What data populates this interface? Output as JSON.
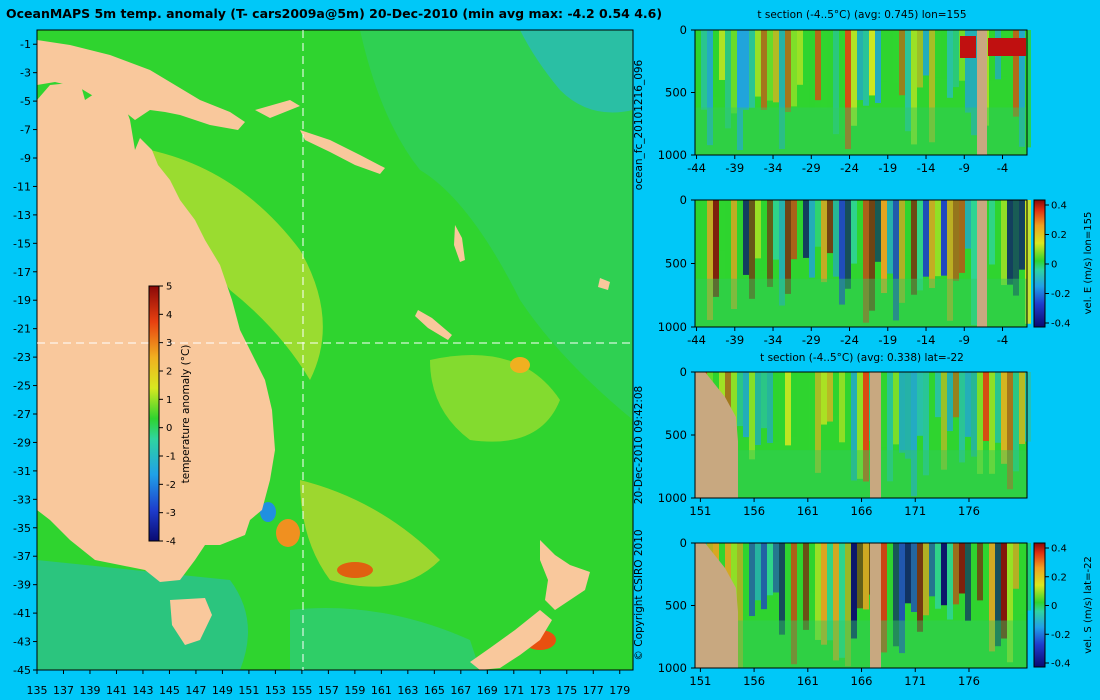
{
  "title": "OceanMAPS 5m temp. anomaly (T- cars2009a@5m) 20-Dec-2010 (min avg max: -4.2 0.54 4.6)",
  "side_text": {
    "run": "ocean_fc_20101216_096",
    "timestamp": "20-Dec-2010 09:42:08",
    "copyright": "© Copyright CSIRO 2010"
  },
  "colors": {
    "background": "#00c8f8",
    "land": "#f9c89c",
    "section_land": "#c8a880",
    "ocean_base": "#2fd42f",
    "crosshair": "#ffffff"
  },
  "chart_data": [
    {
      "id": "map",
      "type": "heatmap",
      "title": "OceanMAPS 5m temp. anomaly (T- cars2009a@5m) 20-Dec-2010 (min avg max: -4.2 0.54 4.6)",
      "x_ticks": [
        "135",
        "137",
        "139",
        "141",
        "143",
        "145",
        "147",
        "149",
        "151",
        "153",
        "155",
        "157",
        "159",
        "161",
        "163",
        "165",
        "167",
        "169",
        "171",
        "173",
        "175",
        "177",
        "179"
      ],
      "y_ticks": [
        "-1",
        "-3",
        "-5",
        "-7",
        "-9",
        "-11",
        "-13",
        "-15",
        "-17",
        "-19",
        "-21",
        "-23",
        "-25",
        "-27",
        "-29",
        "-31",
        "-33",
        "-35",
        "-37",
        "-39",
        "-41",
        "-43",
        "-45"
      ],
      "xlim": [
        135,
        180
      ],
      "ylim": [
        -45,
        0
      ],
      "crosshair": {
        "lon": 155,
        "lat": -22
      },
      "colorbar": {
        "label": "temperature anomaly (°C)",
        "ticks": [
          "5",
          "4",
          "3",
          "2",
          "1",
          "0",
          "-1",
          "-2",
          "-3",
          "-4"
        ],
        "range": [
          -4,
          5
        ]
      }
    },
    {
      "id": "panel1",
      "type": "heatmap",
      "title": "t section (-4..5°C) (avg: 0.745) lon=155",
      "x_ticks": [
        "-44",
        "-39",
        "-34",
        "-29",
        "-24",
        "-19",
        "-14",
        "-9",
        "-4"
      ],
      "y_ticks": [
        "0",
        "500",
        "1000"
      ],
      "ylim": [
        1000,
        0
      ]
    },
    {
      "id": "panel2",
      "type": "heatmap",
      "title": "",
      "x_ticks": [
        "-44",
        "-39",
        "-34",
        "-29",
        "-24",
        "-19",
        "-14",
        "-9",
        "-4"
      ],
      "y_ticks": [
        "0",
        "500",
        "1000"
      ],
      "ylim": [
        1000,
        0
      ],
      "colorbar": {
        "label": "vel. E (m/s) lon=155",
        "ticks": [
          "0.4",
          "0.2",
          "0",
          "-0.2",
          "-0.4"
        ],
        "range": [
          -0.4,
          0.4
        ]
      }
    },
    {
      "id": "panel3",
      "type": "heatmap",
      "title": "t section (-4..5°C) (avg: 0.338) lat=-22",
      "x_ticks": [
        "151",
        "156",
        "161",
        "166",
        "171",
        "176"
      ],
      "y_ticks": [
        "0",
        "500",
        "1000"
      ],
      "ylim": [
        1000,
        0
      ]
    },
    {
      "id": "panel4",
      "type": "heatmap",
      "title": "",
      "x_ticks": [
        "151",
        "156",
        "161",
        "166",
        "171",
        "176"
      ],
      "y_ticks": [
        "0",
        "500",
        "1000"
      ],
      "ylim": [
        1000,
        0
      ],
      "colorbar": {
        "label": "vel. S (m/s) lat=-22",
        "ticks": [
          "0.4",
          "0.2",
          "0",
          "-0.2",
          "-0.4"
        ],
        "range": [
          -0.4,
          0.4
        ]
      }
    }
  ]
}
